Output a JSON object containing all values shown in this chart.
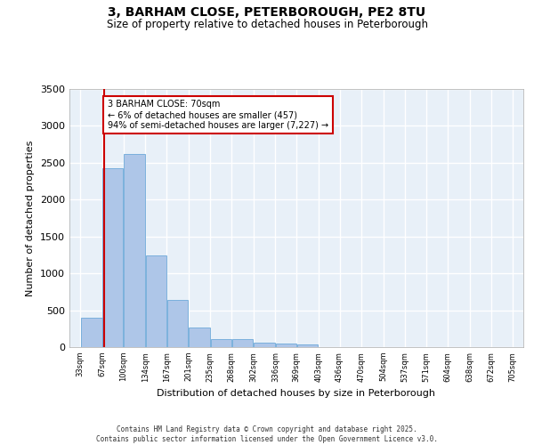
{
  "title_line1": "3, BARHAM CLOSE, PETERBOROUGH, PE2 8TU",
  "title_line2": "Size of property relative to detached houses in Peterborough",
  "xlabel": "Distribution of detached houses by size in Peterborough",
  "ylabel": "Number of detached properties",
  "bar_color": "#aec6e8",
  "bar_edge_color": "#5a9fd4",
  "background_color": "#e8f0f8",
  "grid_color": "#ffffff",
  "annotation_text": "3 BARHAM CLOSE: 70sqm\n← 6% of detached houses are smaller (457)\n94% of semi-detached houses are larger (7,227) →",
  "vline_x": 70,
  "vline_color": "#cc0000",
  "annotation_box_edge": "#cc0000",
  "footer_line1": "Contains HM Land Registry data © Crown copyright and database right 2025.",
  "footer_line2": "Contains public sector information licensed under the Open Government Licence v3.0.",
  "bin_edges": [
    33,
    67,
    100,
    134,
    167,
    201,
    235,
    268,
    302,
    336,
    369,
    403,
    436,
    470,
    504,
    537,
    571,
    604,
    638,
    672,
    705
  ],
  "bin_labels": [
    "33sqm",
    "67sqm",
    "100sqm",
    "134sqm",
    "167sqm",
    "201sqm",
    "235sqm",
    "268sqm",
    "302sqm",
    "336sqm",
    "369sqm",
    "403sqm",
    "436sqm",
    "470sqm",
    "504sqm",
    "537sqm",
    "571sqm",
    "604sqm",
    "638sqm",
    "672sqm",
    "705sqm"
  ],
  "bar_heights": [
    400,
    2420,
    2620,
    1240,
    640,
    260,
    110,
    110,
    55,
    50,
    35,
    0,
    0,
    0,
    0,
    0,
    0,
    0,
    0,
    0
  ],
  "ylim": [
    0,
    3500
  ],
  "yticks": [
    0,
    500,
    1000,
    1500,
    2000,
    2500,
    3000,
    3500
  ]
}
